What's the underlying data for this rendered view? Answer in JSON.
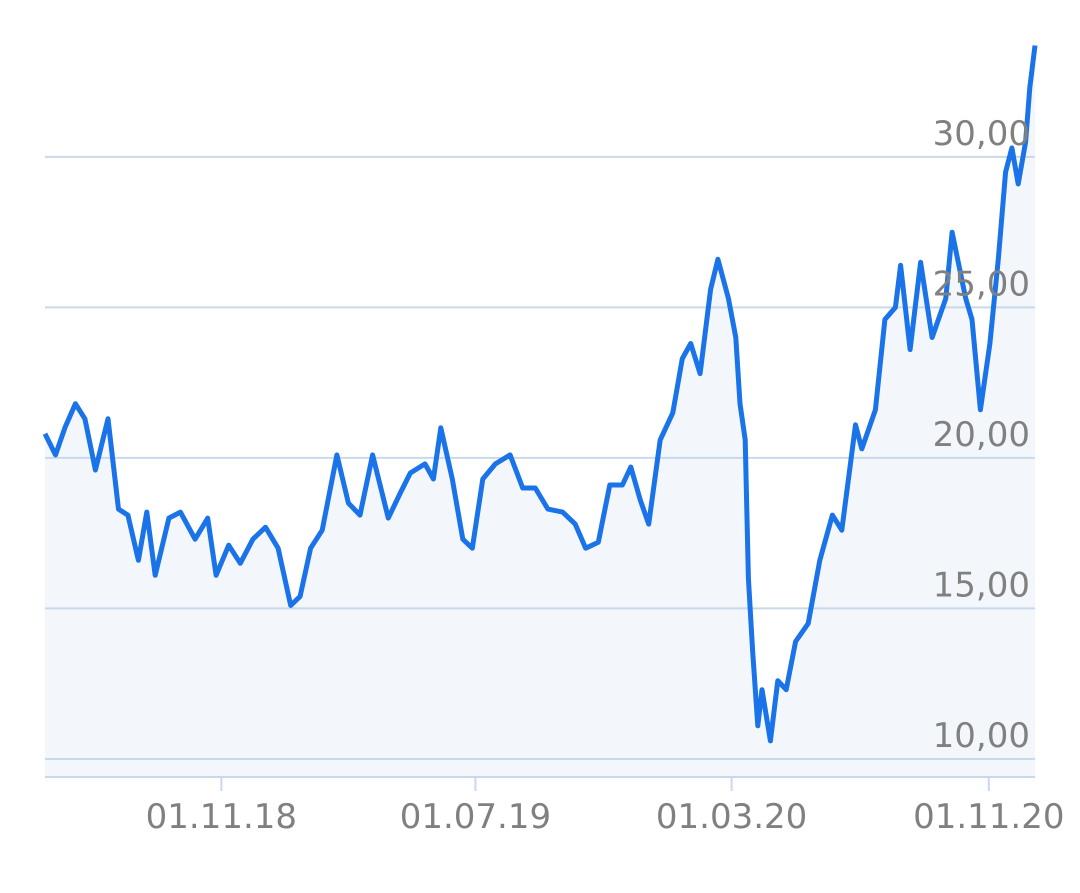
{
  "chart_data": {
    "type": "line",
    "color": "#1a73e8",
    "area_color": "#f3f7fc",
    "grid": true,
    "x": [
      "2018-05-17",
      "2018-05-27",
      "2018-06-05",
      "2018-06-15",
      "2018-06-24",
      "2018-07-04",
      "2018-07-16",
      "2018-07-26",
      "2018-08-04",
      "2018-08-14",
      "2018-08-22",
      "2018-08-30",
      "2018-09-12",
      "2018-09-23",
      "2018-10-07",
      "2018-10-19",
      "2018-10-27",
      "2018-11-08",
      "2018-11-19",
      "2018-12-01",
      "2018-12-13",
      "2018-12-25",
      "2019-01-06",
      "2019-01-15",
      "2019-01-25",
      "2019-02-05",
      "2019-02-19",
      "2019-03-02",
      "2019-03-13",
      "2019-03-25",
      "2019-04-09",
      "2019-04-20",
      "2019-04-30",
      "2019-05-14",
      "2019-05-22",
      "2019-05-29",
      "2019-06-09",
      "2019-06-19",
      "2019-06-28",
      "2019-07-08",
      "2019-07-20",
      "2019-08-03",
      "2019-08-15",
      "2019-08-27",
      "2019-09-08",
      "2019-09-22",
      "2019-10-04",
      "2019-10-14",
      "2019-10-26",
      "2019-11-06",
      "2019-11-18",
      "2019-11-26",
      "2019-12-05",
      "2019-12-13",
      "2019-12-24",
      "2020-01-05",
      "2020-01-14",
      "2020-01-22",
      "2020-01-31",
      "2020-02-10",
      "2020-02-17",
      "2020-02-27",
      "2020-03-05",
      "2020-03-09",
      "2020-03-14",
      "2020-03-17",
      "2020-03-21",
      "2020-03-26",
      "2020-03-30",
      "2020-04-07",
      "2020-04-14",
      "2020-04-22",
      "2020-05-01",
      "2020-05-13",
      "2020-05-24",
      "2020-06-05",
      "2020-06-14",
      "2020-06-27",
      "2020-07-03",
      "2020-07-16",
      "2020-07-25",
      "2020-08-04",
      "2020-08-09",
      "2020-08-18",
      "2020-08-28",
      "2020-09-08",
      "2020-09-21",
      "2020-09-27",
      "2020-10-10",
      "2020-10-16",
      "2020-10-24",
      "2020-11-02",
      "2020-11-10",
      "2020-11-17",
      "2020-11-23",
      "2020-11-29",
      "2020-12-06",
      "2020-12-10",
      "2020-12-15"
    ],
    "values": [
      20.8,
      20.1,
      21.0,
      21.8,
      21.3,
      19.6,
      21.3,
      18.3,
      18.1,
      16.6,
      18.2,
      16.1,
      18.0,
      18.2,
      17.3,
      18.0,
      16.1,
      17.1,
      16.5,
      17.3,
      17.7,
      17.0,
      15.1,
      15.4,
      17.0,
      17.6,
      20.1,
      18.5,
      18.1,
      20.1,
      18.0,
      18.8,
      19.5,
      19.8,
      19.3,
      21.0,
      19.3,
      17.3,
      17.0,
      19.3,
      19.8,
      20.1,
      19.0,
      19.0,
      18.3,
      18.2,
      17.8,
      17.0,
      17.2,
      19.1,
      19.1,
      19.7,
      18.6,
      17.8,
      20.6,
      21.5,
      23.3,
      23.8,
      22.8,
      25.6,
      26.6,
      25.3,
      24.0,
      21.8,
      20.6,
      16.0,
      13.6,
      11.1,
      12.3,
      10.6,
      12.6,
      12.3,
      13.9,
      14.5,
      16.6,
      18.1,
      17.6,
      21.1,
      20.3,
      21.6,
      24.6,
      25.0,
      26.4,
      23.6,
      26.5,
      24.0,
      25.3,
      27.5,
      25.3,
      24.6,
      21.6,
      23.8,
      26.6,
      29.5,
      30.3,
      29.1,
      30.5,
      32.3,
      33.7
    ],
    "xlim": [
      "2018-05-17",
      "2020-12-15"
    ],
    "xticks": [
      {
        "value": "2018-11-01",
        "label": "01.11.18"
      },
      {
        "value": "2019-07-01",
        "label": "01.07.19"
      },
      {
        "value": "2020-03-01",
        "label": "01.03.20"
      },
      {
        "value": "2020-11-01",
        "label": "01.11.20"
      }
    ],
    "ylim": [
      9.4,
      34
    ],
    "yticks": [
      {
        "value": 10,
        "label": "10,00"
      },
      {
        "value": 15,
        "label": "15,00"
      },
      {
        "value": 20,
        "label": "20,00"
      },
      {
        "value": 25,
        "label": "25,00"
      },
      {
        "value": 30,
        "label": "30,00"
      }
    ]
  }
}
